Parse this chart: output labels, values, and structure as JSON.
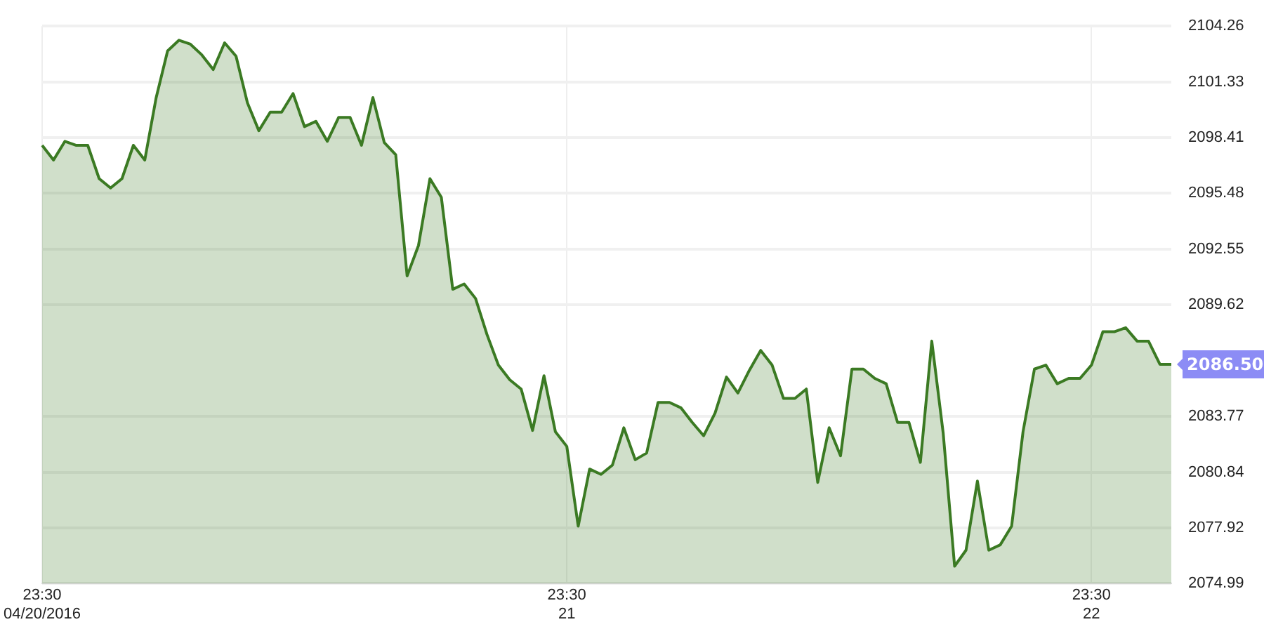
{
  "chart_data": {
    "type": "area",
    "categories": [
      "23:30\n04/20/2016",
      null,
      null,
      null,
      null,
      null,
      null,
      null,
      null,
      null,
      null,
      null,
      null,
      null,
      null,
      null,
      null,
      null,
      null,
      null,
      null,
      null,
      null,
      null,
      null,
      null,
      null,
      null,
      null,
      null,
      null,
      null,
      null,
      null,
      null,
      null,
      null,
      null,
      null,
      null,
      null,
      null,
      null,
      null,
      null,
      null,
      "23:30\n21",
      null,
      null,
      null,
      null,
      null,
      null,
      null,
      null,
      null,
      null,
      null,
      null,
      null,
      null,
      null,
      null,
      null,
      null,
      null,
      null,
      null,
      null,
      null,
      null,
      null,
      null,
      null,
      null,
      null,
      null,
      null,
      null,
      null,
      null,
      null,
      null,
      null,
      null,
      null,
      null,
      null,
      null,
      null,
      null,
      null,
      "23:30\n22",
      null,
      null,
      null,
      null,
      null,
      null,
      null
    ],
    "series": [
      {
        "color": "#3b7a23",
        "values": [
          2098.0,
          2097.23,
          2098.21,
          2098.0,
          2098.0,
          2096.25,
          2095.76,
          2096.25,
          2098.0,
          2097.23,
          2100.51,
          2102.96,
          2103.52,
          2103.31,
          2102.75,
          2101.98,
          2103.38,
          2102.68,
          2100.23,
          2098.77,
          2099.74,
          2099.74,
          2100.72,
          2098.98,
          2099.26,
          2098.21,
          2099.47,
          2099.47,
          2098.0,
          2100.51,
          2098.14,
          2097.51,
          2091.14,
          2092.75,
          2096.25,
          2095.27,
          2090.44,
          2090.72,
          2089.96,
          2088.07,
          2086.46,
          2085.69,
          2085.2,
          2083.03,
          2085.9,
          2082.96,
          2082.19,
          2078.0,
          2081.0,
          2080.72,
          2081.21,
          2083.17,
          2081.49,
          2081.84,
          2084.5,
          2084.5,
          2084.22,
          2083.45,
          2082.75,
          2083.94,
          2085.83,
          2084.99,
          2086.18,
          2087.23,
          2086.46,
          2084.71,
          2084.71,
          2085.2,
          2080.3,
          2083.17,
          2081.7,
          2086.25,
          2086.25,
          2085.76,
          2085.48,
          2083.45,
          2083.45,
          2081.35,
          2087.72,
          2082.89,
          2075.9,
          2076.74,
          2080.37,
          2076.74,
          2077.02,
          2078.0,
          2082.96,
          2086.25,
          2086.46,
          2085.48,
          2085.76,
          2085.76,
          2086.46,
          2088.21,
          2088.21,
          2088.42,
          2087.72,
          2087.72,
          2086.5,
          2086.5
        ]
      }
    ],
    "ylim": [
      2074.99,
      2104.26
    ],
    "yticks": [
      2074.99,
      2077.92,
      2080.84,
      2083.77,
      2089.62,
      2092.55,
      2095.48,
      2098.41,
      2101.33,
      2104.26
    ],
    "grid": true,
    "marker": "none",
    "annotations": [
      "2086.50"
    ]
  }
}
